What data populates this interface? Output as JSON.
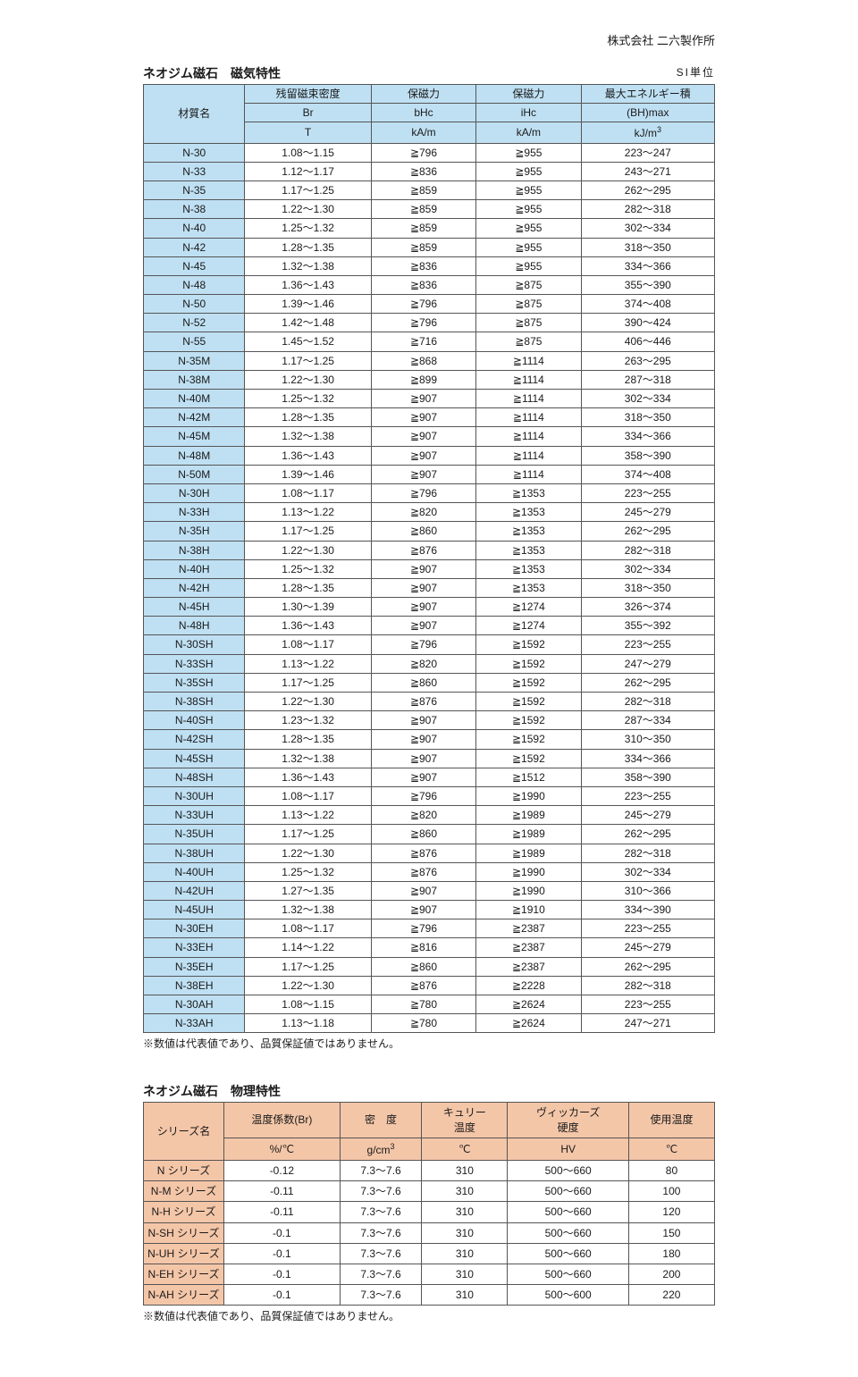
{
  "company": "株式会社 二六製作所",
  "table1": {
    "title": "ネオジム磁石　磁気特性",
    "unit_label": "SI単位",
    "header": {
      "col1": "材質名",
      "col2_a": "残留磁束密度",
      "col2_b": "Br",
      "col2_c": "T",
      "col3_a": "保磁力",
      "col3_b": "bHc",
      "col3_c": "kA/m",
      "col4_a": "保磁力",
      "col4_b": "iHc",
      "col4_c": "kA/m",
      "col5_a": "最大エネルギー積",
      "col5_b": "(BH)max",
      "col5_c_pre": "kJ/m",
      "col5_c_sup": "3"
    },
    "rows": [
      {
        "m": "N-30",
        "br": "1.08～1.15",
        "bhc": "≧796",
        "ihc": "≧955",
        "bh": "223～247"
      },
      {
        "m": "N-33",
        "br": "1.12～1.17",
        "bhc": "≧836",
        "ihc": "≧955",
        "bh": "243～271"
      },
      {
        "m": "N-35",
        "br": "1.17～1.25",
        "bhc": "≧859",
        "ihc": "≧955",
        "bh": "262～295"
      },
      {
        "m": "N-38",
        "br": "1.22～1.30",
        "bhc": "≧859",
        "ihc": "≧955",
        "bh": "282～318"
      },
      {
        "m": "N-40",
        "br": "1.25～1.32",
        "bhc": "≧859",
        "ihc": "≧955",
        "bh": "302～334"
      },
      {
        "m": "N-42",
        "br": "1.28～1.35",
        "bhc": "≧859",
        "ihc": "≧955",
        "bh": "318～350"
      },
      {
        "m": "N-45",
        "br": "1.32～1.38",
        "bhc": "≧836",
        "ihc": "≧955",
        "bh": "334～366"
      },
      {
        "m": "N-48",
        "br": "1.36～1.43",
        "bhc": "≧836",
        "ihc": "≧875",
        "bh": "355～390"
      },
      {
        "m": "N-50",
        "br": "1.39～1.46",
        "bhc": "≧796",
        "ihc": "≧875",
        "bh": "374～408"
      },
      {
        "m": "N-52",
        "br": "1.42～1.48",
        "bhc": "≧796",
        "ihc": "≧875",
        "bh": "390～424"
      },
      {
        "m": "N-55",
        "br": "1.45～1.52",
        "bhc": "≧716",
        "ihc": "≧875",
        "bh": "406～446"
      },
      {
        "m": "N-35M",
        "br": "1.17～1.25",
        "bhc": "≧868",
        "ihc": "≧1114",
        "bh": "263～295"
      },
      {
        "m": "N-38M",
        "br": "1.22～1.30",
        "bhc": "≧899",
        "ihc": "≧1114",
        "bh": "287～318"
      },
      {
        "m": "N-40M",
        "br": "1.25～1.32",
        "bhc": "≧907",
        "ihc": "≧1114",
        "bh": "302～334"
      },
      {
        "m": "N-42M",
        "br": "1.28～1.35",
        "bhc": "≧907",
        "ihc": "≧1114",
        "bh": "318～350"
      },
      {
        "m": "N-45M",
        "br": "1.32～1.38",
        "bhc": "≧907",
        "ihc": "≧1114",
        "bh": "334～366"
      },
      {
        "m": "N-48M",
        "br": "1.36～1.43",
        "bhc": "≧907",
        "ihc": "≧1114",
        "bh": "358～390"
      },
      {
        "m": "N-50M",
        "br": "1.39～1.46",
        "bhc": "≧907",
        "ihc": "≧1114",
        "bh": "374～408"
      },
      {
        "m": "N-30H",
        "br": "1.08～1.17",
        "bhc": "≧796",
        "ihc": "≧1353",
        "bh": "223～255"
      },
      {
        "m": "N-33H",
        "br": "1.13～1.22",
        "bhc": "≧820",
        "ihc": "≧1353",
        "bh": "245～279"
      },
      {
        "m": "N-35H",
        "br": "1.17～1.25",
        "bhc": "≧860",
        "ihc": "≧1353",
        "bh": "262～295"
      },
      {
        "m": "N-38H",
        "br": "1.22～1.30",
        "bhc": "≧876",
        "ihc": "≧1353",
        "bh": "282～318"
      },
      {
        "m": "N-40H",
        "br": "1.25～1.32",
        "bhc": "≧907",
        "ihc": "≧1353",
        "bh": "302～334"
      },
      {
        "m": "N-42H",
        "br": "1.28～1.35",
        "bhc": "≧907",
        "ihc": "≧1353",
        "bh": "318～350"
      },
      {
        "m": "N-45H",
        "br": "1.30～1.39",
        "bhc": "≧907",
        "ihc": "≧1274",
        "bh": "326～374"
      },
      {
        "m": "N-48H",
        "br": "1.36～1.43",
        "bhc": "≧907",
        "ihc": "≧1274",
        "bh": "355～392"
      },
      {
        "m": "N-30SH",
        "br": "1.08～1.17",
        "bhc": "≧796",
        "ihc": "≧1592",
        "bh": "223～255"
      },
      {
        "m": "N-33SH",
        "br": "1.13～1.22",
        "bhc": "≧820",
        "ihc": "≧1592",
        "bh": "247～279"
      },
      {
        "m": "N-35SH",
        "br": "1.17～1.25",
        "bhc": "≧860",
        "ihc": "≧1592",
        "bh": "262～295"
      },
      {
        "m": "N-38SH",
        "br": "1.22～1.30",
        "bhc": "≧876",
        "ihc": "≧1592",
        "bh": "282～318"
      },
      {
        "m": "N-40SH",
        "br": "1.23～1.32",
        "bhc": "≧907",
        "ihc": "≧1592",
        "bh": "287～334"
      },
      {
        "m": "N-42SH",
        "br": "1.28～1.35",
        "bhc": "≧907",
        "ihc": "≧1592",
        "bh": "310～350"
      },
      {
        "m": "N-45SH",
        "br": "1.32～1.38",
        "bhc": "≧907",
        "ihc": "≧1592",
        "bh": "334～366"
      },
      {
        "m": "N-48SH",
        "br": "1.36～1.43",
        "bhc": "≧907",
        "ihc": "≧1512",
        "bh": "358～390"
      },
      {
        "m": "N-30UH",
        "br": "1.08～1.17",
        "bhc": "≧796",
        "ihc": "≧1990",
        "bh": "223～255"
      },
      {
        "m": "N-33UH",
        "br": "1.13～1.22",
        "bhc": "≧820",
        "ihc": "≧1989",
        "bh": "245～279"
      },
      {
        "m": "N-35UH",
        "br": "1.17～1.25",
        "bhc": "≧860",
        "ihc": "≧1989",
        "bh": "262～295"
      },
      {
        "m": "N-38UH",
        "br": "1.22～1.30",
        "bhc": "≧876",
        "ihc": "≧1989",
        "bh": "282～318"
      },
      {
        "m": "N-40UH",
        "br": "1.25～1.32",
        "bhc": "≧876",
        "ihc": "≧1990",
        "bh": "302～334"
      },
      {
        "m": "N-42UH",
        "br": "1.27～1.35",
        "bhc": "≧907",
        "ihc": "≧1990",
        "bh": "310～366"
      },
      {
        "m": "N-45UH",
        "br": "1.32～1.38",
        "bhc": "≧907",
        "ihc": "≧1910",
        "bh": "334～390"
      },
      {
        "m": "N-30EH",
        "br": "1.08～1.17",
        "bhc": "≧796",
        "ihc": "≧2387",
        "bh": "223～255"
      },
      {
        "m": "N-33EH",
        "br": "1.14～1.22",
        "bhc": "≧816",
        "ihc": "≧2387",
        "bh": "245～279"
      },
      {
        "m": "N-35EH",
        "br": "1.17～1.25",
        "bhc": "≧860",
        "ihc": "≧2387",
        "bh": "262～295"
      },
      {
        "m": "N-38EH",
        "br": "1.22～1.30",
        "bhc": "≧876",
        "ihc": "≧2228",
        "bh": "282～318"
      },
      {
        "m": "N-30AH",
        "br": "1.08～1.15",
        "bhc": "≧780",
        "ihc": "≧2624",
        "bh": "223～255"
      },
      {
        "m": "N-33AH",
        "br": "1.13～1.18",
        "bhc": "≧780",
        "ihc": "≧2624",
        "bh": "247～271"
      }
    ],
    "note": "※数値は代表値であり、品質保証値ではありません。"
  },
  "table2": {
    "title": "ネオジム磁石　物理特性",
    "header": {
      "col1": "シリーズ名",
      "col2_a": "温度係数(Br)",
      "col2_b": "%/℃",
      "col3_a": "密　度",
      "col3_b_pre": "g/cm",
      "col3_b_sup": "3",
      "col4_a": "キュリー\n温度",
      "col4_b": "℃",
      "col5_a": "ヴィッカーズ\n硬度",
      "col5_b": "HV",
      "col6_a": "使用温度",
      "col6_b": "℃"
    },
    "rows": [
      {
        "s": "N シリーズ",
        "a": "-0.12",
        "b": "7.3～7.6",
        "c": "310",
        "d": "500～660",
        "e": "80"
      },
      {
        "s": "N-M シリーズ",
        "a": "-0.11",
        "b": "7.3～7.6",
        "c": "310",
        "d": "500～660",
        "e": "100"
      },
      {
        "s": "N-H シリーズ",
        "a": "-0.11",
        "b": "7.3～7.6",
        "c": "310",
        "d": "500～660",
        "e": "120"
      },
      {
        "s": "N-SH シリーズ",
        "a": "-0.1",
        "b": "7.3～7.6",
        "c": "310",
        "d": "500～660",
        "e": "150"
      },
      {
        "s": "N-UH シリーズ",
        "a": "-0.1",
        "b": "7.3～7.6",
        "c": "310",
        "d": "500～660",
        "e": "180"
      },
      {
        "s": "N-EH シリーズ",
        "a": "-0.1",
        "b": "7.3～7.6",
        "c": "310",
        "d": "500～660",
        "e": "200"
      },
      {
        "s": "N-AH シリーズ",
        "a": "-0.1",
        "b": "7.3～7.6",
        "c": "310",
        "d": "500～600",
        "e": "220"
      }
    ],
    "note": "※数値は代表値であり、品質保証値ではありません。"
  }
}
